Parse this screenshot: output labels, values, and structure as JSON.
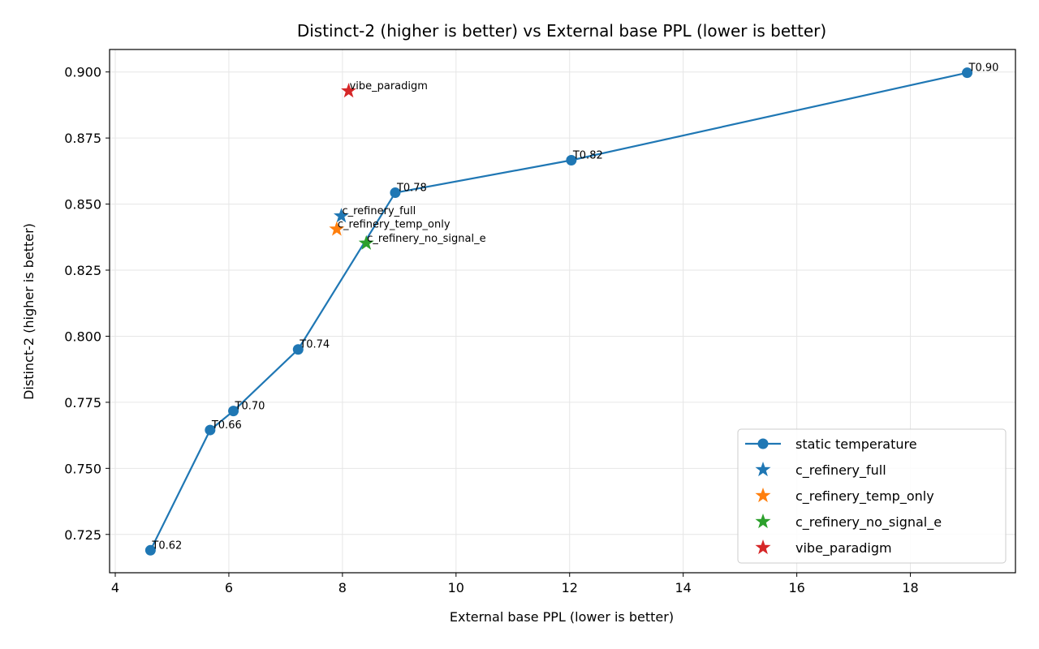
{
  "chart_data": {
    "type": "scatter",
    "title": "Distinct-2 (higher is better) vs External base PPL (lower is better)",
    "xlabel": "External base PPL (lower is better)",
    "ylabel": "Distinct-2 (higher is better)",
    "xlim": [
      3.9,
      19.85
    ],
    "ylim": [
      0.7105,
      0.9085
    ],
    "xticks": [
      4,
      6,
      8,
      10,
      12,
      14,
      16,
      18
    ],
    "xtick_labels": [
      "4",
      "6",
      "8",
      "10",
      "12",
      "14",
      "16",
      "18"
    ],
    "yticks": [
      0.725,
      0.75,
      0.775,
      0.8,
      0.825,
      0.85,
      0.875,
      0.9
    ],
    "ytick_labels": [
      "0.725",
      "0.750",
      "0.775",
      "0.800",
      "0.825",
      "0.850",
      "0.875",
      "0.900"
    ],
    "grid": true,
    "legend_position": "bottom-right",
    "series": [
      {
        "name": "static temperature",
        "kind": "line-marker",
        "color": "#1f77b4",
        "points": [
          {
            "x": 4.62,
            "y": 0.719,
            "label": "T0.62"
          },
          {
            "x": 5.67,
            "y": 0.7645,
            "label": "T0.66"
          },
          {
            "x": 6.08,
            "y": 0.7717,
            "label": "T0.70"
          },
          {
            "x": 7.22,
            "y": 0.795,
            "label": "T0.74"
          },
          {
            "x": 8.93,
            "y": 0.8543,
            "label": "T0.78"
          },
          {
            "x": 12.03,
            "y": 0.8666,
            "label": "T0.82"
          },
          {
            "x": 19.0,
            "y": 0.8997,
            "label": "T0.90"
          }
        ]
      },
      {
        "name": "c_refinery_full",
        "kind": "star",
        "color": "#1f77b4",
        "points": [
          {
            "x": 7.98,
            "y": 0.8455,
            "label": "c_refinery_full"
          }
        ]
      },
      {
        "name": "c_refinery_temp_only",
        "kind": "star",
        "color": "#ff7f0e",
        "points": [
          {
            "x": 7.9,
            "y": 0.8405,
            "label": "c_refinery_temp_only"
          }
        ]
      },
      {
        "name": "c_refinery_no_signal_e",
        "kind": "star",
        "color": "#2ca02c",
        "points": [
          {
            "x": 8.42,
            "y": 0.8352,
            "label": "c_refinery_no_signal_e"
          }
        ]
      },
      {
        "name": "vibe_paradigm",
        "kind": "star",
        "color": "#d62728",
        "points": [
          {
            "x": 8.11,
            "y": 0.8928,
            "label": "vibe_paradigm"
          }
        ]
      }
    ]
  }
}
